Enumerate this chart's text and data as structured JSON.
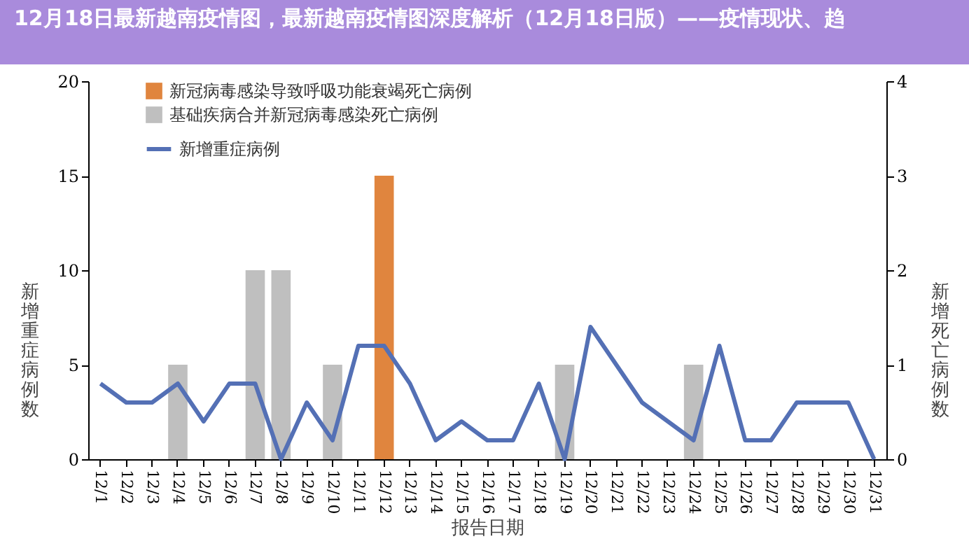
{
  "chart_data": {
    "type": "bar",
    "title": "12月18日最新越南疫情图，最新越南疫情图深度解析（12月18日版）——疫情现状、趋",
    "xlabel": "报告日期",
    "ylabel": "新增重症病例数",
    "y2label": "新增死亡病例数",
    "categories": [
      "12/1",
      "12/2",
      "12/3",
      "12/4",
      "12/5",
      "12/6",
      "12/7",
      "12/8",
      "12/9",
      "12/10",
      "12/11",
      "12/12",
      "12/13",
      "12/14",
      "12/15",
      "12/16",
      "12/17",
      "12/18",
      "12/19",
      "12/20",
      "12/21",
      "12/22",
      "12/23",
      "12/24",
      "12/25",
      "12/26",
      "12/27",
      "12/28",
      "12/29",
      "12/30",
      "12/31"
    ],
    "series": [
      {
        "name": "新冠病毒感染导致呼吸功能衰竭死亡病例",
        "axis": "y2",
        "color": "#e0853e",
        "values": [
          null,
          null,
          null,
          null,
          null,
          null,
          null,
          null,
          null,
          null,
          null,
          3,
          null,
          null,
          null,
          null,
          null,
          null,
          null,
          null,
          null,
          null,
          null,
          null,
          null,
          null,
          null,
          null,
          null,
          null,
          null
        ]
      },
      {
        "name": "基础疾病合并新冠病毒感染死亡病例",
        "axis": "y2",
        "color": "#bfbfbf",
        "values": [
          null,
          null,
          null,
          1,
          null,
          null,
          2,
          2,
          null,
          1,
          null,
          null,
          null,
          null,
          null,
          null,
          null,
          null,
          1,
          null,
          null,
          null,
          null,
          1,
          null,
          null,
          null,
          null,
          null,
          null,
          null
        ]
      },
      {
        "name": "新增重症病例",
        "type": "line",
        "axis": "y",
        "color": "#5470b5",
        "values": [
          4,
          3,
          3,
          4,
          2,
          4,
          4,
          0,
          3,
          1,
          6,
          6,
          4,
          1,
          2,
          1,
          1,
          4,
          0,
          7,
          5,
          3,
          2,
          1,
          6,
          1,
          1,
          3,
          3,
          3,
          0
        ]
      }
    ],
    "ylim": [
      0,
      20
    ],
    "yticks": [
      0,
      5,
      10,
      15,
      20
    ],
    "y2lim": [
      0,
      4
    ],
    "y2ticks": [
      0,
      1,
      2,
      3,
      4
    ],
    "legend": "top left",
    "marker": "none",
    "line_style": "solid",
    "grid": false
  }
}
